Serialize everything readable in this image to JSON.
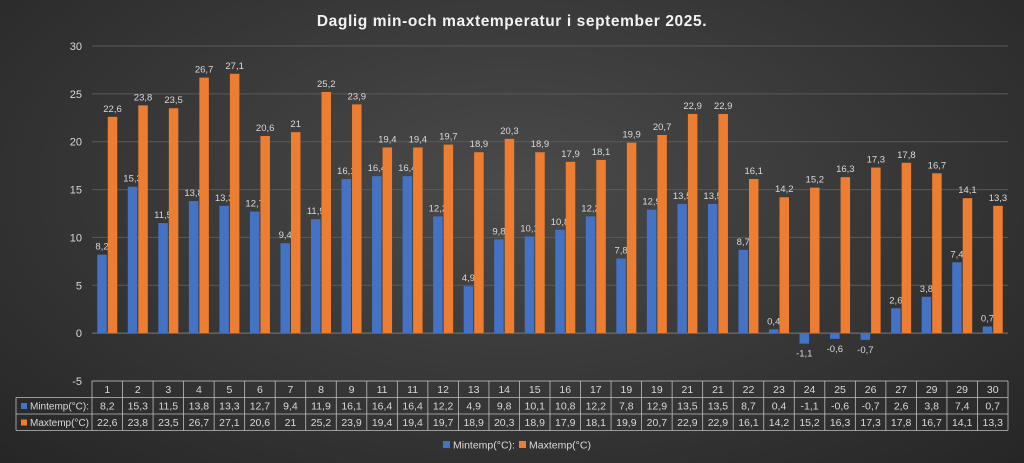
{
  "chart_data": {
    "type": "bar",
    "title": "Daglig min-och maxtemperatur i september 2025.",
    "categories": [
      "1",
      "2",
      "3",
      "4",
      "5",
      "6",
      "7",
      "8",
      "9",
      "11",
      "11",
      "12",
      "13",
      "14",
      "15",
      "16",
      "17",
      "19",
      "19",
      "21",
      "21",
      "22",
      "23",
      "24",
      "25",
      "26",
      "27",
      "29",
      "29",
      "30"
    ],
    "series": [
      {
        "name": "Mintemp(°C):",
        "color": "#4472C4",
        "values": [
          8.2,
          15.3,
          11.5,
          13.8,
          13.3,
          12.7,
          9.4,
          11.9,
          16.1,
          16.4,
          16.4,
          12.2,
          4.9,
          9.8,
          10.1,
          10.8,
          12.2,
          7.8,
          12.9,
          13.5,
          13.5,
          8.7,
          0.4,
          -1.1,
          -0.6,
          -0.7,
          2.6,
          3.8,
          7.4,
          0.7
        ],
        "labels": [
          "8,2",
          "15,3",
          "11,5",
          "13,8",
          "13,3",
          "12,7",
          "9,4",
          "11,9",
          "16,1",
          "16,4",
          "16,4",
          "12,2",
          "4,9",
          "9,8",
          "10,1",
          "10,8",
          "12,2",
          "7,8",
          "12,9",
          "13,5",
          "13,5",
          "8,7",
          "0,4",
          "-1,1",
          "-0,6",
          "-0,7",
          "2,6",
          "3,8",
          "7,4",
          "0,7"
        ]
      },
      {
        "name": "Maxtemp(°C)",
        "color": "#ED7D31",
        "values": [
          22.6,
          23.8,
          23.5,
          26.7,
          27.1,
          20.6,
          21,
          25.2,
          23.9,
          19.4,
          19.4,
          19.7,
          18.9,
          20.3,
          18.9,
          17.9,
          18.1,
          19.9,
          20.7,
          22.9,
          22.9,
          16.1,
          14.2,
          15.2,
          16.3,
          17.3,
          17.8,
          16.7,
          14.1,
          13.3
        ],
        "labels": [
          "22,6",
          "23,8",
          "23,5",
          "26,7",
          "27,1",
          "20,6",
          "21",
          "25,2",
          "23,9",
          "19,4",
          "19,4",
          "19,7",
          "18,9",
          "20,3",
          "18,9",
          "17,9",
          "18,1",
          "19,9",
          "20,7",
          "22,9",
          "22,9",
          "16,1",
          "14,2",
          "15,2",
          "16,3",
          "17,3",
          "17,8",
          "16,7",
          "14,1",
          "13,3"
        ]
      }
    ],
    "table_labels": [
      "Mintemp(°C):",
      "Maxtemp(°C)"
    ],
    "legend": [
      "Mintemp(°C):",
      "Maxtemp(°C)"
    ],
    "legend_position": "bottom",
    "ylim": [
      -5,
      30
    ],
    "yticks": [
      "-5",
      "0",
      "5",
      "10",
      "15",
      "20",
      "25",
      "30"
    ],
    "grid": true,
    "data_table": true
  }
}
